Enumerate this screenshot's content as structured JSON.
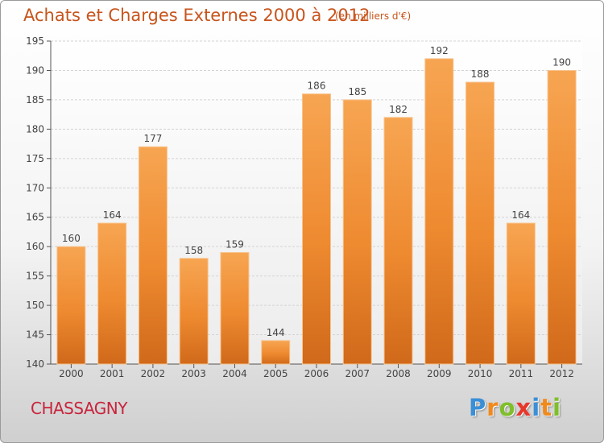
{
  "chart_data": {
    "type": "bar",
    "title": "Achats et Charges Externes 2000 à 2012",
    "subtitle": "(en milliers d'€)",
    "categories": [
      "2000",
      "2001",
      "2002",
      "2003",
      "2004",
      "2005",
      "2006",
      "2007",
      "2008",
      "2009",
      "2010",
      "2011",
      "2012"
    ],
    "values": [
      160,
      164,
      177,
      158,
      159,
      144,
      186,
      185,
      182,
      192,
      188,
      164,
      190
    ],
    "ylim": [
      140,
      195
    ],
    "yticks": [
      140,
      145,
      150,
      155,
      160,
      165,
      170,
      175,
      180,
      185,
      190,
      195
    ],
    "grid": true,
    "bar_color": "#f0943a",
    "xlabel": "",
    "ylabel": ""
  },
  "footer": {
    "commune": "CHASSAGNY"
  },
  "logo": {
    "letters": [
      "P",
      "r",
      "o",
      "x",
      "i",
      "t",
      "i"
    ],
    "colors": [
      "#3a8fd6",
      "#f08a1c",
      "#7fbf2a",
      "#e8362a",
      "#3a8fd6",
      "#f08a1c",
      "#7fbf2a"
    ]
  }
}
